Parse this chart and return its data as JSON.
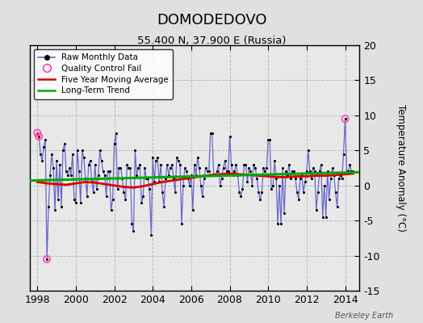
{
  "title": "DOMODEDOVO",
  "subtitle": "55.400 N, 37.900 E (Russia)",
  "ylabel": "Temperature Anomaly (°C)",
  "credit": "Berkeley Earth",
  "xlim": [
    1997.6,
    2014.75
  ],
  "ylim": [
    -15,
    20
  ],
  "yticks": [
    -15,
    -10,
    -5,
    0,
    5,
    10,
    15,
    20
  ],
  "xticks": [
    1998,
    2000,
    2002,
    2004,
    2006,
    2008,
    2010,
    2012,
    2014
  ],
  "bg_color": "#e0e0e0",
  "plot_bg_color": "#e8e8e8",
  "raw_color": "#6666cc",
  "dot_color": "#000000",
  "qc_color": "#ff44aa",
  "moving_avg_color": "#dd0000",
  "trend_color": "#00aa00",
  "raw_data": [
    [
      1998.0,
      7.5
    ],
    [
      1998.083,
      7.0
    ],
    [
      1998.167,
      4.5
    ],
    [
      1998.25,
      3.5
    ],
    [
      1998.333,
      5.5
    ],
    [
      1998.417,
      6.5
    ],
    [
      1998.5,
      -10.5
    ],
    [
      1998.583,
      -3.0
    ],
    [
      1998.667,
      1.5
    ],
    [
      1998.75,
      4.5
    ],
    [
      1998.833,
      2.5
    ],
    [
      1998.917,
      -3.5
    ],
    [
      1999.0,
      3.5
    ],
    [
      1999.083,
      -2.0
    ],
    [
      1999.167,
      3.0
    ],
    [
      1999.25,
      -3.0
    ],
    [
      1999.333,
      5.0
    ],
    [
      1999.417,
      6.0
    ],
    [
      1999.5,
      2.0
    ],
    [
      1999.583,
      1.5
    ],
    [
      1999.667,
      2.5
    ],
    [
      1999.75,
      1.5
    ],
    [
      1999.833,
      4.5
    ],
    [
      1999.917,
      -2.0
    ],
    [
      2000.0,
      -2.5
    ],
    [
      2000.083,
      5.0
    ],
    [
      2000.167,
      2.0
    ],
    [
      2000.25,
      -2.5
    ],
    [
      2000.333,
      5.0
    ],
    [
      2000.417,
      4.0
    ],
    [
      2000.5,
      1.0
    ],
    [
      2000.583,
      -1.5
    ],
    [
      2000.667,
      3.0
    ],
    [
      2000.75,
      3.5
    ],
    [
      2000.833,
      0.5
    ],
    [
      2000.917,
      -1.0
    ],
    [
      2001.0,
      3.0
    ],
    [
      2001.083,
      -0.5
    ],
    [
      2001.167,
      1.5
    ],
    [
      2001.25,
      5.0
    ],
    [
      2001.333,
      3.5
    ],
    [
      2001.417,
      2.0
    ],
    [
      2001.5,
      1.5
    ],
    [
      2001.583,
      -1.5
    ],
    [
      2001.667,
      2.0
    ],
    [
      2001.75,
      2.0
    ],
    [
      2001.833,
      -3.5
    ],
    [
      2001.917,
      -2.0
    ],
    [
      2002.0,
      6.0
    ],
    [
      2002.083,
      7.5
    ],
    [
      2002.167,
      -0.5
    ],
    [
      2002.25,
      2.5
    ],
    [
      2002.333,
      2.5
    ],
    [
      2002.417,
      1.0
    ],
    [
      2002.5,
      -1.0
    ],
    [
      2002.583,
      -2.0
    ],
    [
      2002.667,
      3.0
    ],
    [
      2002.75,
      2.5
    ],
    [
      2002.833,
      2.5
    ],
    [
      2002.917,
      -5.5
    ],
    [
      2003.0,
      -6.5
    ],
    [
      2003.083,
      5.0
    ],
    [
      2003.167,
      1.5
    ],
    [
      2003.25,
      2.5
    ],
    [
      2003.333,
      3.0
    ],
    [
      2003.417,
      -2.5
    ],
    [
      2003.5,
      -1.5
    ],
    [
      2003.583,
      2.5
    ],
    [
      2003.667,
      1.0
    ],
    [
      2003.75,
      1.0
    ],
    [
      2003.833,
      -0.5
    ],
    [
      2003.917,
      -7.0
    ],
    [
      2004.0,
      4.0
    ],
    [
      2004.083,
      0.5
    ],
    [
      2004.167,
      3.5
    ],
    [
      2004.25,
      4.0
    ],
    [
      2004.333,
      0.5
    ],
    [
      2004.417,
      3.0
    ],
    [
      2004.5,
      -1.0
    ],
    [
      2004.583,
      -3.0
    ],
    [
      2004.667,
      1.0
    ],
    [
      2004.75,
      3.0
    ],
    [
      2004.833,
      1.5
    ],
    [
      2004.917,
      2.5
    ],
    [
      2005.0,
      3.0
    ],
    [
      2005.083,
      1.0
    ],
    [
      2005.167,
      -1.0
    ],
    [
      2005.25,
      4.0
    ],
    [
      2005.333,
      3.5
    ],
    [
      2005.417,
      3.0
    ],
    [
      2005.5,
      -5.5
    ],
    [
      2005.583,
      0.0
    ],
    [
      2005.667,
      2.5
    ],
    [
      2005.75,
      2.0
    ],
    [
      2005.833,
      1.0
    ],
    [
      2005.917,
      0.0
    ],
    [
      2006.0,
      1.5
    ],
    [
      2006.083,
      -3.5
    ],
    [
      2006.167,
      3.0
    ],
    [
      2006.25,
      1.5
    ],
    [
      2006.333,
      4.0
    ],
    [
      2006.417,
      2.5
    ],
    [
      2006.5,
      0.0
    ],
    [
      2006.583,
      -1.5
    ],
    [
      2006.667,
      1.0
    ],
    [
      2006.75,
      2.5
    ],
    [
      2006.833,
      2.0
    ],
    [
      2006.917,
      2.0
    ],
    [
      2007.0,
      7.5
    ],
    [
      2007.083,
      7.5
    ],
    [
      2007.167,
      1.5
    ],
    [
      2007.25,
      1.5
    ],
    [
      2007.333,
      2.0
    ],
    [
      2007.417,
      3.0
    ],
    [
      2007.5,
      0.0
    ],
    [
      2007.583,
      1.0
    ],
    [
      2007.667,
      2.5
    ],
    [
      2007.75,
      3.5
    ],
    [
      2007.833,
      2.0
    ],
    [
      2007.917,
      2.0
    ],
    [
      2008.0,
      7.0
    ],
    [
      2008.083,
      3.0
    ],
    [
      2008.167,
      1.5
    ],
    [
      2008.25,
      2.0
    ],
    [
      2008.333,
      3.0
    ],
    [
      2008.417,
      1.5
    ],
    [
      2008.5,
      -1.0
    ],
    [
      2008.583,
      -1.5
    ],
    [
      2008.667,
      -0.5
    ],
    [
      2008.75,
      3.0
    ],
    [
      2008.833,
      3.0
    ],
    [
      2008.917,
      0.5
    ],
    [
      2009.0,
      2.5
    ],
    [
      2009.083,
      2.0
    ],
    [
      2009.167,
      0.0
    ],
    [
      2009.25,
      3.0
    ],
    [
      2009.333,
      2.5
    ],
    [
      2009.417,
      1.0
    ],
    [
      2009.5,
      -1.0
    ],
    [
      2009.583,
      -2.0
    ],
    [
      2009.667,
      -1.0
    ],
    [
      2009.75,
      2.5
    ],
    [
      2009.833,
      2.0
    ],
    [
      2009.917,
      2.5
    ],
    [
      2010.0,
      6.5
    ],
    [
      2010.083,
      6.5
    ],
    [
      2010.167,
      -0.5
    ],
    [
      2010.25,
      0.0
    ],
    [
      2010.333,
      3.5
    ],
    [
      2010.417,
      1.0
    ],
    [
      2010.5,
      -5.5
    ],
    [
      2010.583,
      0.0
    ],
    [
      2010.667,
      -5.5
    ],
    [
      2010.75,
      2.5
    ],
    [
      2010.833,
      -4.0
    ],
    [
      2010.917,
      2.0
    ],
    [
      2011.0,
      1.5
    ],
    [
      2011.083,
      3.0
    ],
    [
      2011.167,
      1.0
    ],
    [
      2011.25,
      2.0
    ],
    [
      2011.333,
      2.0
    ],
    [
      2011.417,
      1.0
    ],
    [
      2011.5,
      -1.0
    ],
    [
      2011.583,
      -2.0
    ],
    [
      2011.667,
      1.0
    ],
    [
      2011.75,
      1.5
    ],
    [
      2011.833,
      -1.0
    ],
    [
      2011.917,
      0.5
    ],
    [
      2012.0,
      2.0
    ],
    [
      2012.083,
      5.0
    ],
    [
      2012.167,
      2.0
    ],
    [
      2012.25,
      1.0
    ],
    [
      2012.333,
      2.5
    ],
    [
      2012.417,
      2.0
    ],
    [
      2012.5,
      -3.5
    ],
    [
      2012.583,
      -1.0
    ],
    [
      2012.667,
      2.0
    ],
    [
      2012.75,
      3.0
    ],
    [
      2012.833,
      -4.5
    ],
    [
      2012.917,
      0.0
    ],
    [
      2013.0,
      -4.5
    ],
    [
      2013.083,
      2.0
    ],
    [
      2013.167,
      -2.0
    ],
    [
      2013.25,
      1.0
    ],
    [
      2013.333,
      2.5
    ],
    [
      2013.417,
      1.5
    ],
    [
      2013.5,
      -1.0
    ],
    [
      2013.583,
      -3.0
    ],
    [
      2013.667,
      1.0
    ],
    [
      2013.75,
      1.5
    ],
    [
      2013.833,
      1.0
    ],
    [
      2013.917,
      4.5
    ],
    [
      2014.0,
      9.5
    ],
    [
      2014.083,
      2.0
    ],
    [
      2014.167,
      2.0
    ],
    [
      2014.25,
      3.0
    ],
    [
      2014.333,
      2.0
    ],
    [
      2014.417,
      2.0
    ]
  ],
  "qc_fail_points": [
    [
      1998.0,
      7.5
    ],
    [
      1998.083,
      7.0
    ],
    [
      1998.5,
      -10.5
    ],
    [
      2014.0,
      9.5
    ]
  ],
  "moving_avg": [
    [
      1998.0,
      0.5
    ],
    [
      1998.5,
      0.3
    ],
    [
      1999.0,
      0.2
    ],
    [
      1999.5,
      0.1
    ],
    [
      2000.0,
      0.3
    ],
    [
      2000.5,
      0.5
    ],
    [
      2001.0,
      0.4
    ],
    [
      2001.5,
      0.2
    ],
    [
      2002.0,
      0.0
    ],
    [
      2002.5,
      -0.2
    ],
    [
      2003.0,
      -0.3
    ],
    [
      2003.5,
      -0.1
    ],
    [
      2004.0,
      0.2
    ],
    [
      2004.5,
      0.5
    ],
    [
      2005.0,
      0.7
    ],
    [
      2005.5,
      0.9
    ],
    [
      2006.0,
      1.1
    ],
    [
      2006.5,
      1.3
    ],
    [
      2007.0,
      1.5
    ],
    [
      2007.5,
      1.6
    ],
    [
      2008.0,
      1.7
    ],
    [
      2008.5,
      1.6
    ],
    [
      2009.0,
      1.5
    ],
    [
      2009.5,
      1.4
    ],
    [
      2010.0,
      1.3
    ],
    [
      2010.5,
      1.2
    ],
    [
      2011.0,
      1.2
    ],
    [
      2011.5,
      1.3
    ],
    [
      2012.0,
      1.3
    ],
    [
      2012.5,
      1.4
    ],
    [
      2013.0,
      1.4
    ],
    [
      2013.5,
      1.5
    ],
    [
      2014.0,
      1.6
    ],
    [
      2014.417,
      1.7
    ]
  ],
  "trend_x": [
    1997.6,
    2014.75
  ],
  "trend_y": [
    0.7,
    1.9
  ]
}
